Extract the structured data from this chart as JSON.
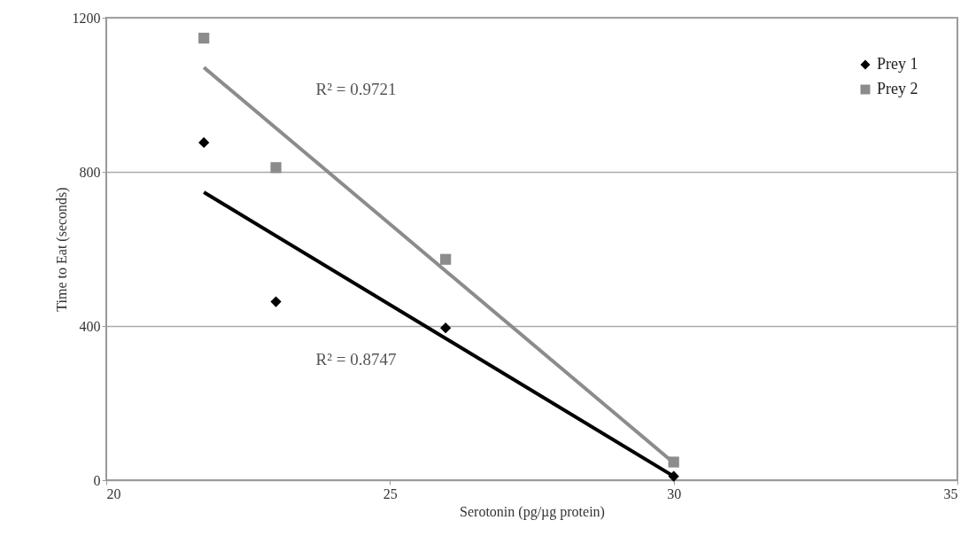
{
  "chart_data": {
    "type": "scatter",
    "xlabel": "Serotonin (pg/µg protein)",
    "ylabel": "Time to Eat (seconds)",
    "xlim": [
      20,
      35
    ],
    "xticks": [
      20,
      25,
      30,
      35
    ],
    "ylim": [
      0,
      1200
    ],
    "yticks": [
      0,
      400,
      800,
      1200
    ],
    "grid": "y",
    "legend": "top right",
    "series": [
      {
        "name": "Prey 1",
        "color": "#000000",
        "marker": "diamond",
        "x": [
          21.72,
          22.99,
          25.98,
          30.0
        ],
        "values": [
          876,
          463,
          395,
          10
        ]
      },
      {
        "name": "Prey 2",
        "color": "#8c8c8c",
        "marker": "square",
        "x": [
          21.72,
          22.99,
          25.98,
          30.0
        ],
        "values": [
          1147,
          811,
          573,
          47
        ]
      },
      {
        "type": "line",
        "color": "#000000",
        "x": [
          21.72,
          30.0
        ],
        "values": [
          747,
          10
        ]
      },
      {
        "type": "line",
        "color": "#8c8c8c",
        "x": [
          21.72,
          30.0
        ],
        "values": [
          1071,
          45
        ]
      }
    ],
    "annotations": [
      "R² = 0.9721",
      "R² = 0.8747"
    ]
  }
}
